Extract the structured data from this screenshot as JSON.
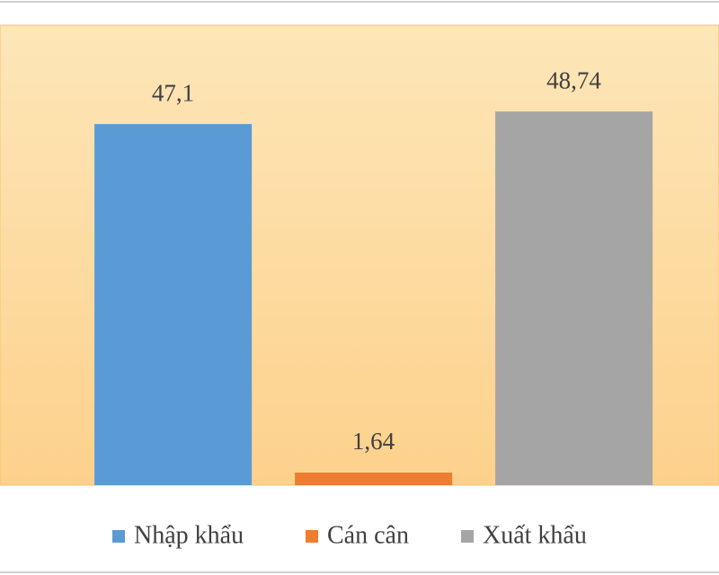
{
  "chart_data": {
    "type": "bar",
    "series": [
      {
        "name": "Nhập khẩu",
        "color": "#5b9bd5",
        "values": [
          47.1
        ],
        "value_labels": [
          "47,1"
        ]
      },
      {
        "name": "Cán cân",
        "color": "#ed7d31",
        "values": [
          1.64
        ],
        "value_labels": [
          "1,64"
        ]
      },
      {
        "name": "Xuất khẩu",
        "color": "#a5a5a5",
        "values": [
          48.74
        ],
        "value_labels": [
          "48,74"
        ]
      }
    ],
    "ylim": [
      0,
      60
    ]
  }
}
